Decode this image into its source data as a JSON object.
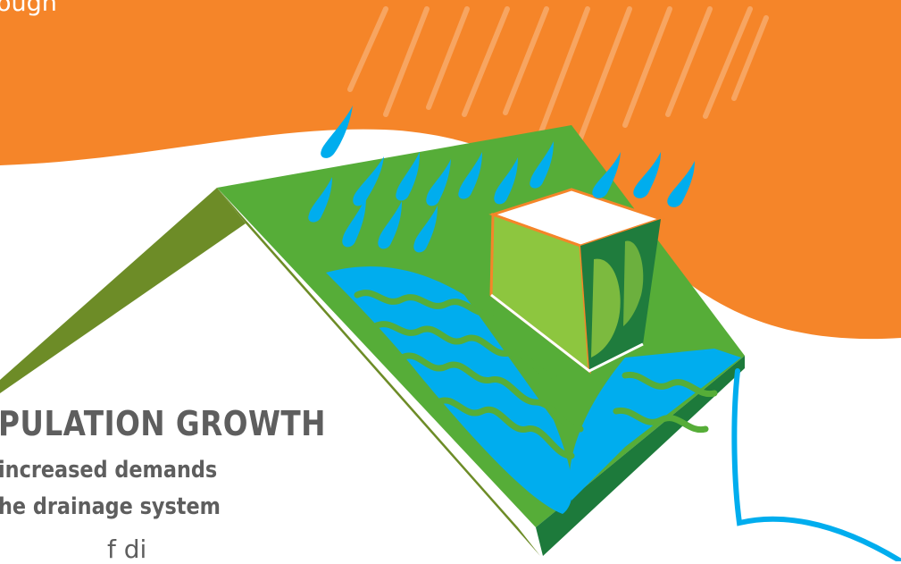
{
  "text": {
    "top_fragment": "ough",
    "heading": "PULATION GROWTH",
    "subline_1": "increased demands",
    "subline_2": "he drainage system",
    "bottom_fragment": "f    di"
  },
  "colors": {
    "background_top": "#f58529",
    "background_bottom": "#ffffff",
    "roof_top": "#56ad38",
    "roof_left_side": "#6d8c27",
    "roof_right_edge": "#1d7a3b",
    "water": "#00adee",
    "building": "#8dc63f",
    "rain": "#00adee",
    "rain_streaks": "#f8a765",
    "heading_text": "#5e5e5e"
  },
  "icons": {
    "illustration": "green-roof-rain-runoff-icon"
  }
}
